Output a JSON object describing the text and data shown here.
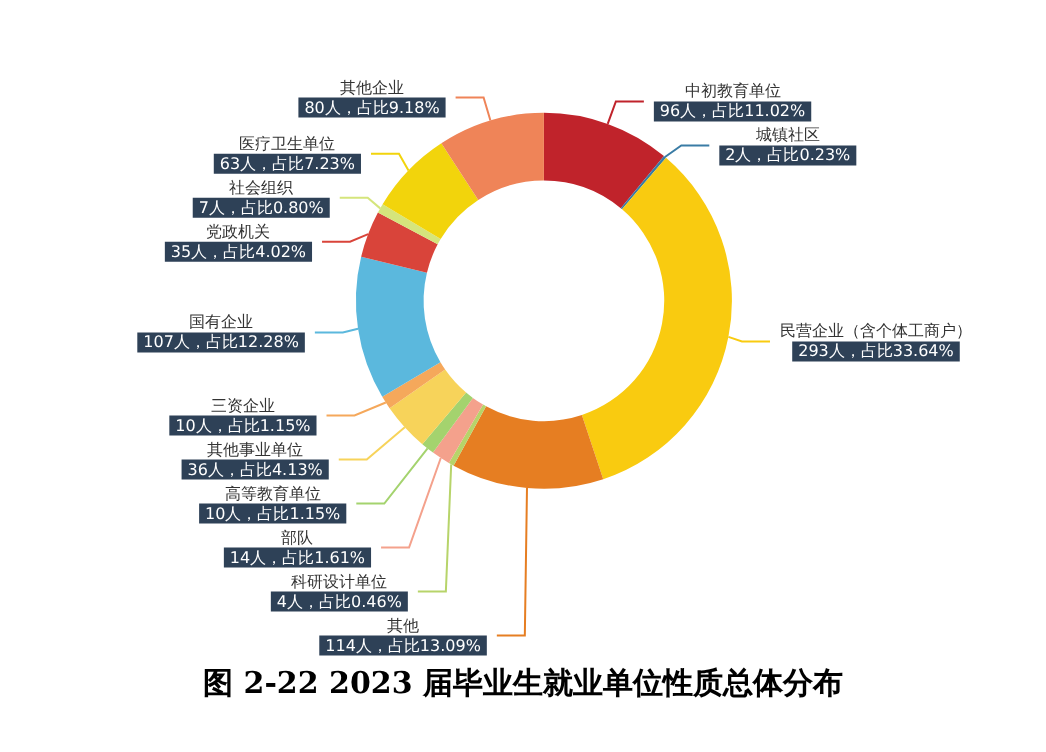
{
  "chart_data": {
    "type": "donut",
    "title": "图 2-22 2023 届毕业生就业单位性质总体分布",
    "categories": [
      "中初教育单位",
      "城镇社区",
      "民营企业（含个体工商户）",
      "其他",
      "科研设计单位",
      "部队",
      "高等教育单位",
      "其他事业单位",
      "三资企业",
      "国有企业",
      "党政机关",
      "社会组织",
      "医疗卫生单位",
      "其他企业"
    ],
    "values": [
      96,
      2,
      293,
      114,
      4,
      14,
      10,
      36,
      10,
      107,
      35,
      7,
      63,
      80
    ],
    "value_labels": [
      "96人，占比11.02%",
      "2人，占比0.23%",
      "293人，占比33.64%",
      "114人，占比13.09%",
      "4人，占比0.46%",
      "14人，占比1.61%",
      "10人，占比1.15%",
      "36人，占比4.13%",
      "10人，占比1.15%",
      "107人，占比12.28%",
      "35人，占比4.02%",
      "7人，占比0.80%",
      "63人，占比7.23%",
      "80人，占比9.18%"
    ],
    "colors": [
      "#c0232b",
      "#3a7ca5",
      "#f9cb10",
      "#e67e22",
      "#b7d46a",
      "#f4a18c",
      "#a4d36e",
      "#f7d35a",
      "#f5a85b",
      "#5bb8dd",
      "#d9443a",
      "#d5e57c",
      "#f2d40c",
      "#ef8458"
    ]
  }
}
